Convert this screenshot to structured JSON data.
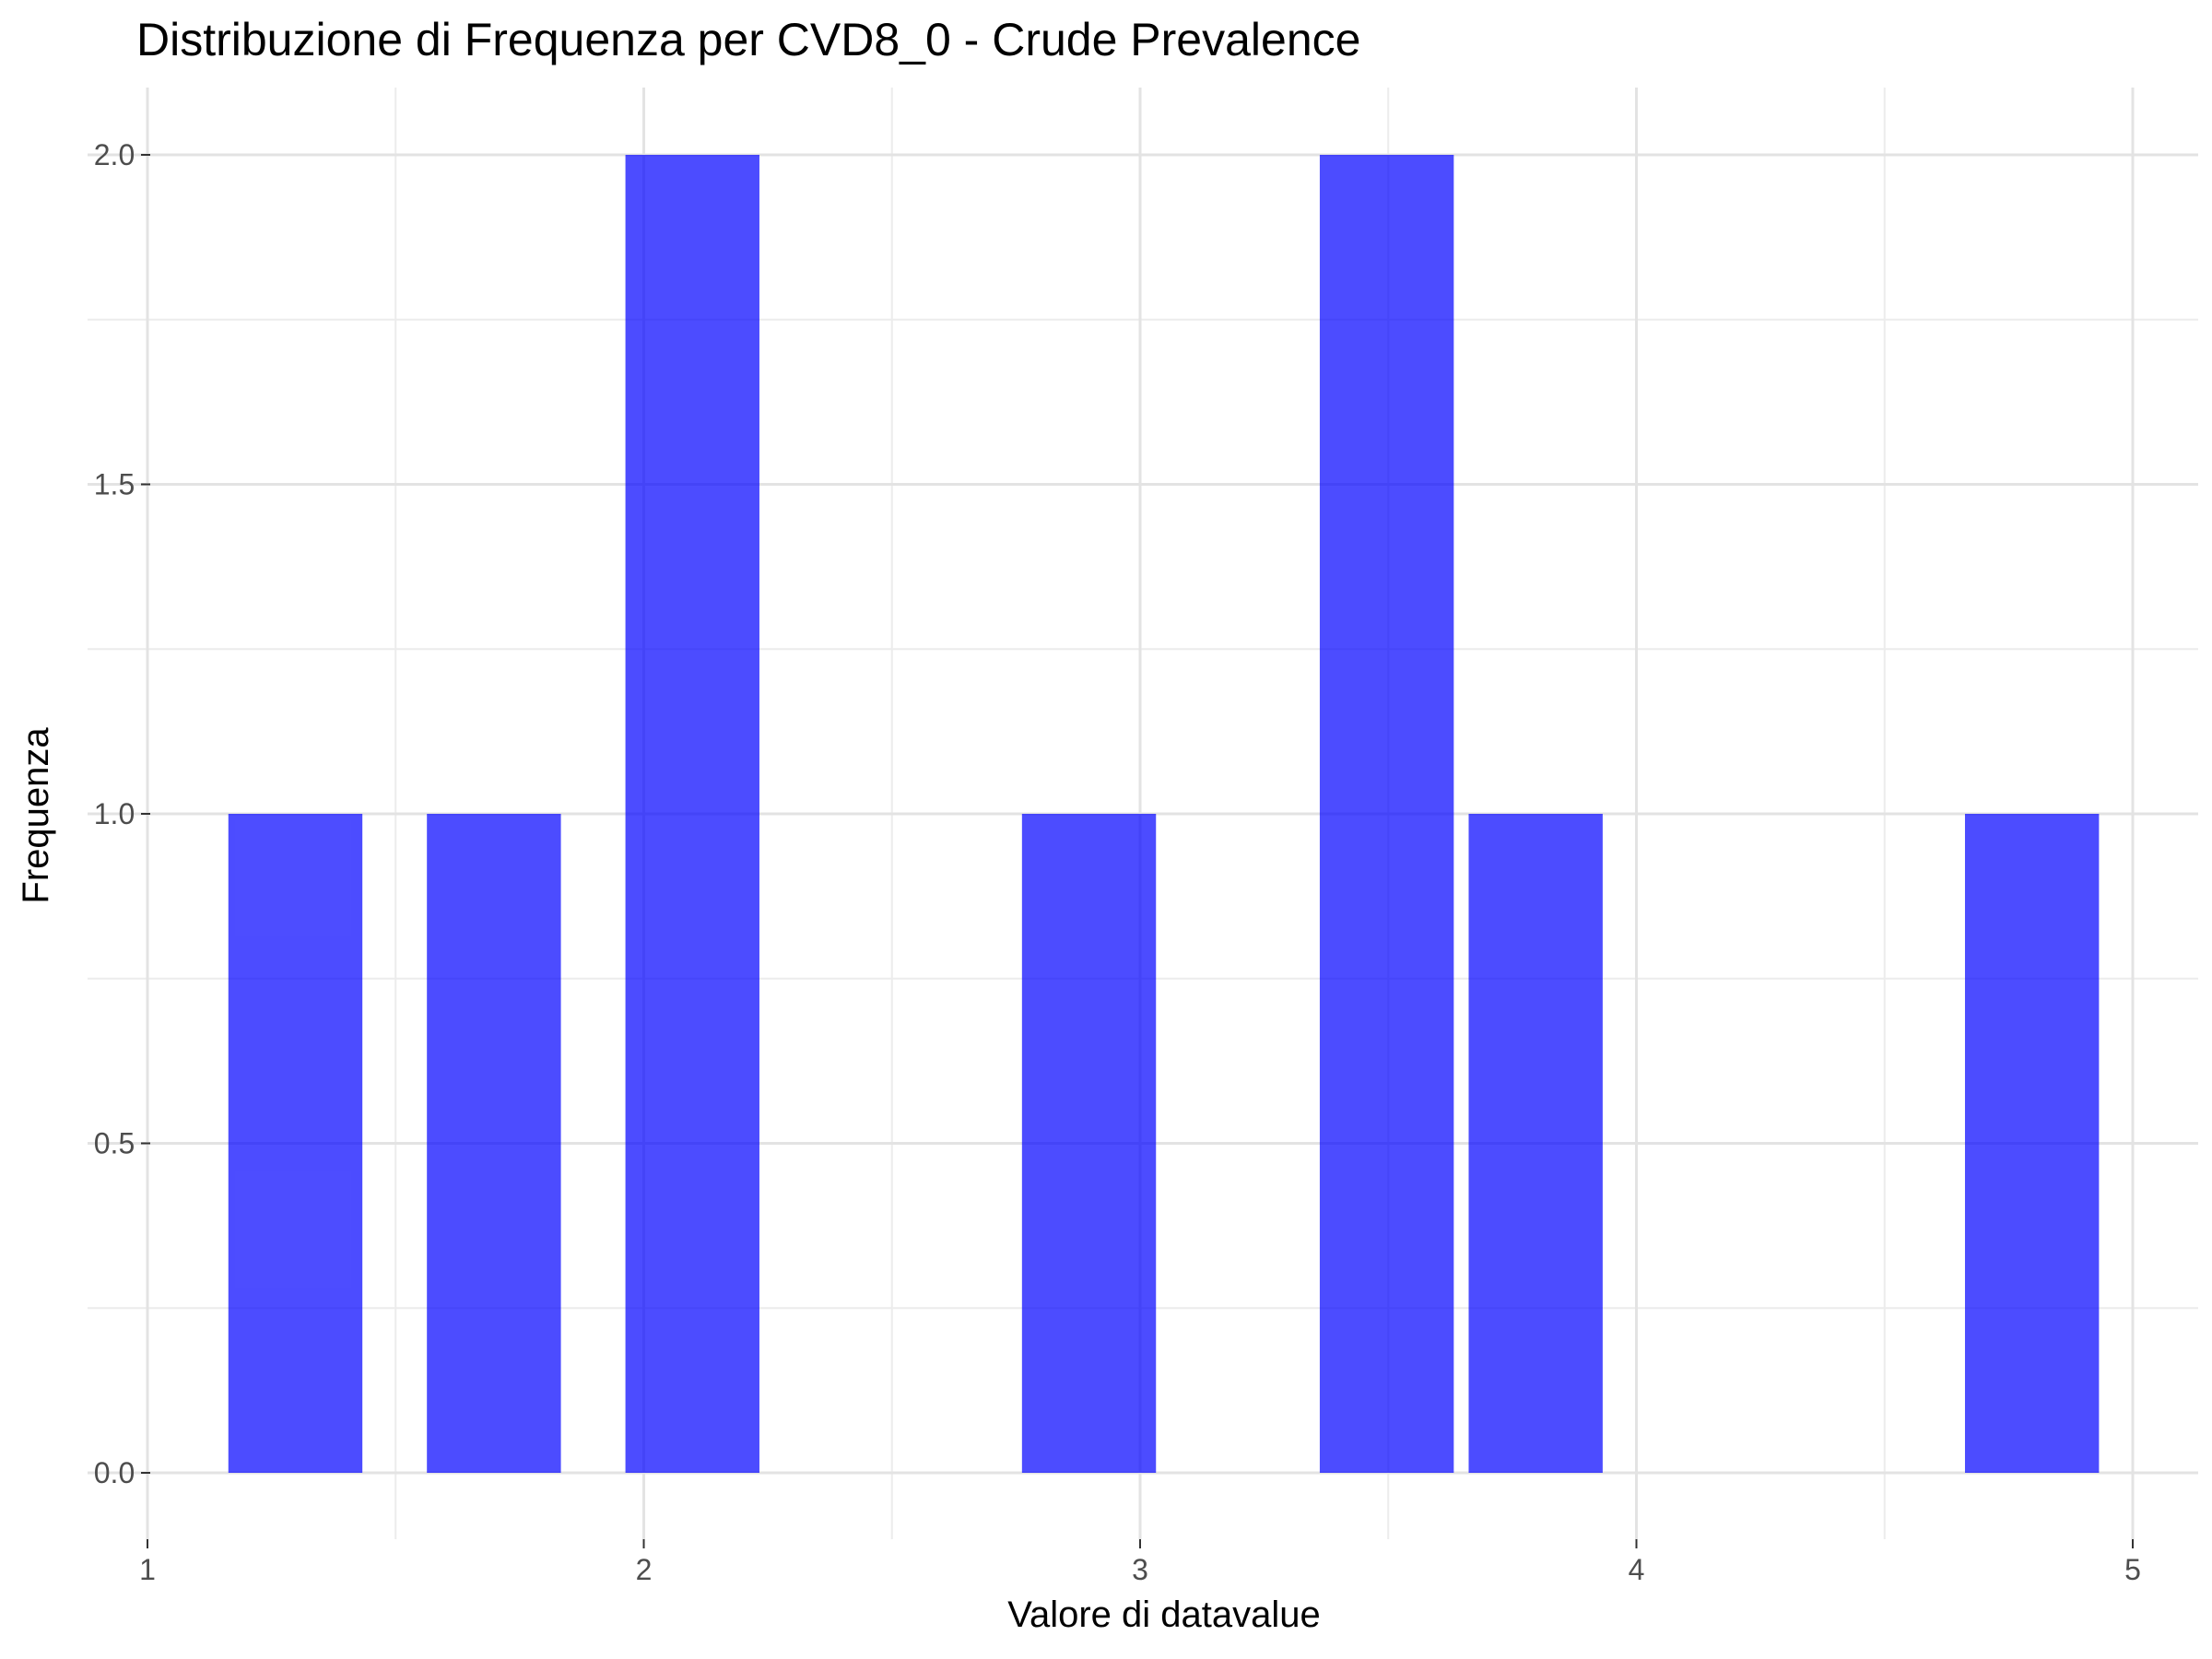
{
  "chart_data": {
    "type": "bar",
    "title": "Distribuzione di Frequenza per CVD8_0 - Crude Prevalence",
    "xlabel": "Valore di datavalue",
    "ylabel": "Frequenza",
    "xlim": [
      1,
      5
    ],
    "ylim": [
      0,
      2
    ],
    "x_ticks": [
      1,
      2,
      3,
      4,
      5
    ],
    "y_ticks": [
      "0.0",
      "0.5",
      "1.0",
      "1.5",
      "2.0"
    ],
    "grid": true,
    "bar_color": "#0000ff",
    "bar_opacity": 0.7,
    "bins": [
      {
        "x0": 1.163,
        "x1": 1.433,
        "count": 1
      },
      {
        "x0": 1.563,
        "x1": 1.833,
        "count": 1
      },
      {
        "x0": 1.963,
        "x1": 2.233,
        "count": 2
      },
      {
        "x0": 2.762,
        "x1": 3.032,
        "count": 1
      },
      {
        "x0": 3.362,
        "x1": 3.632,
        "count": 2
      },
      {
        "x0": 3.662,
        "x1": 3.932,
        "count": 1
      },
      {
        "x0": 4.662,
        "x1": 4.932,
        "count": 1
      }
    ]
  }
}
